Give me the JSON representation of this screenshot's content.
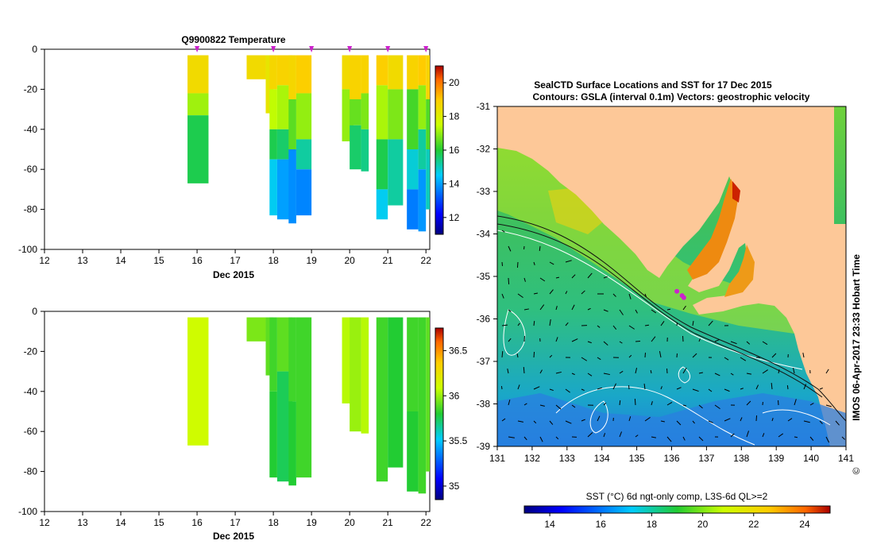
{
  "top_panel": {
    "title": "Q9900822  Temperature",
    "xlabel": "Dec 2015",
    "colorbar_ticks": [
      "12",
      "14",
      "16",
      "18",
      "20"
    ]
  },
  "bottom_panel": {
    "title": "",
    "xlabel": "Dec 2015",
    "colorbar_ticks": [
      "35",
      "35.5",
      "36",
      "36.5"
    ]
  },
  "map_panel": {
    "title_line1": "SealCTD Surface Locations and SST for 17 Dec 2015",
    "title_line2": "Contours: GSLA (interval 0.1m) Vectors: geostrophic velocity",
    "side_label": "IMOS 06-Apr-2017 23:33 Hobart Time",
    "copyright_symbol": "©",
    "colorbar_label": "SST (°C) 6d ngt-only comp, L3S-6d QL>=2",
    "colorbar_ticks": [
      "14",
      "16",
      "18",
      "20",
      "22",
      "24"
    ]
  },
  "colors": {
    "land": "#fdc898",
    "profile_marker": "#cc22cc",
    "contour": "#ffffff",
    "vector": "#000000"
  },
  "chart_data": [
    {
      "type": "heatmap",
      "name": "temperature-section",
      "title": "Q9900822  Temperature",
      "xlabel": "Dec 2015",
      "ylabel": "",
      "x_ticks": [
        12,
        13,
        14,
        15,
        16,
        17,
        18,
        19,
        20,
        21,
        22
      ],
      "y_ticks": [
        0,
        -20,
        -40,
        -60,
        -80,
        -100
      ],
      "xlim": [
        12,
        22.1
      ],
      "ylim": [
        -100,
        0
      ],
      "colorbar": {
        "min": 11,
        "max": 21,
        "ticks": [
          12,
          14,
          16,
          18,
          20
        ]
      },
      "markers_x": [
        16.0,
        18.0,
        19.0,
        20.0,
        21.0,
        22.0
      ],
      "profiles": [
        {
          "x0": 15.75,
          "x1": 16.3,
          "depth": 67,
          "layers": [
            [
              3,
              22,
              18.6
            ],
            [
              22,
              33,
              17.1
            ],
            [
              33,
              67,
              15.8
            ]
          ]
        },
        {
          "x0": 17.3,
          "x1": 17.8,
          "depth": 15,
          "layers": [
            [
              3,
              15,
              18.6
            ]
          ]
        },
        {
          "x0": 17.8,
          "x1": 18.0,
          "depth": 32,
          "layers": [
            [
              3,
              32,
              18.3
            ]
          ]
        },
        {
          "x0": 17.9,
          "x1": 18.1,
          "depth": 83,
          "layers": [
            [
              3,
              20,
              18.7
            ],
            [
              20,
              40,
              17.4
            ],
            [
              40,
              55,
              15.8
            ],
            [
              55,
              83,
              14.6
            ]
          ]
        },
        {
          "x0": 18.1,
          "x1": 18.5,
          "depth": 85,
          "layers": [
            [
              3,
              18,
              18.8
            ],
            [
              18,
              40,
              17.2
            ],
            [
              40,
              55,
              15.6
            ],
            [
              55,
              85,
              14.0
            ]
          ]
        },
        {
          "x0": 18.4,
          "x1": 18.6,
          "depth": 87,
          "layers": [
            [
              3,
              25,
              18.7
            ],
            [
              25,
              50,
              16.5
            ],
            [
              50,
              87,
              13.8
            ]
          ]
        },
        {
          "x0": 18.6,
          "x1": 19.0,
          "depth": 83,
          "layers": [
            [
              3,
              22,
              18.9
            ],
            [
              22,
              45,
              17.0
            ],
            [
              45,
              60,
              15.2
            ],
            [
              60,
              83,
              13.7
            ]
          ]
        },
        {
          "x0": 19.8,
          "x1": 20.1,
          "depth": 46,
          "layers": [
            [
              3,
              20,
              18.6
            ],
            [
              20,
              46,
              17.0
            ]
          ]
        },
        {
          "x0": 20.0,
          "x1": 20.3,
          "depth": 60,
          "layers": [
            [
              3,
              25,
              18.8
            ],
            [
              25,
              38,
              16.6
            ],
            [
              38,
              60,
              15.6
            ]
          ]
        },
        {
          "x0": 20.3,
          "x1": 20.5,
          "depth": 61,
          "layers": [
            [
              3,
              22,
              18.8
            ],
            [
              22,
              40,
              16.8
            ],
            [
              40,
              61,
              15.4
            ]
          ]
        },
        {
          "x0": 20.7,
          "x1": 21.0,
          "depth": 85,
          "layers": [
            [
              3,
              18,
              18.9
            ],
            [
              18,
              45,
              17.2
            ],
            [
              45,
              70,
              15.8
            ],
            [
              70,
              85,
              14.6
            ]
          ]
        },
        {
          "x0": 21.0,
          "x1": 21.4,
          "depth": 78,
          "layers": [
            [
              3,
              20,
              18.6
            ],
            [
              20,
              45,
              16.8
            ],
            [
              45,
              78,
              15.2
            ]
          ]
        },
        {
          "x0": 21.5,
          "x1": 21.8,
          "depth": 90,
          "layers": [
            [
              3,
              20,
              18.8
            ],
            [
              20,
              50,
              16.3
            ],
            [
              50,
              70,
              14.8
            ],
            [
              70,
              90,
              13.6
            ]
          ]
        },
        {
          "x0": 21.8,
          "x1": 22.0,
          "depth": 91,
          "layers": [
            [
              3,
              18,
              19.0
            ],
            [
              18,
              40,
              17.0
            ],
            [
              40,
              60,
              15.2
            ],
            [
              60,
              91,
              13.9
            ]
          ]
        },
        {
          "x0": 22.0,
          "x1": 22.1,
          "depth": 80,
          "layers": [
            [
              3,
              25,
              18.8
            ],
            [
              25,
              50,
              16.4
            ],
            [
              50,
              80,
              15.0
            ]
          ]
        }
      ]
    },
    {
      "type": "heatmap",
      "name": "salinity-section",
      "title": "",
      "xlabel": "Dec 2015",
      "ylabel": "",
      "x_ticks": [
        12,
        13,
        14,
        15,
        16,
        17,
        18,
        19,
        20,
        21,
        22
      ],
      "y_ticks": [
        0,
        -20,
        -40,
        -60,
        -80,
        -100
      ],
      "xlim": [
        12,
        22.1
      ],
      "ylim": [
        -100,
        0
      ],
      "colorbar": {
        "min": 34.85,
        "max": 36.75,
        "ticks": [
          35,
          35.5,
          36,
          36.5
        ]
      },
      "profiles": [
        {
          "x0": 15.75,
          "x1": 16.3,
          "depth": 67,
          "layers": [
            [
              3,
              67,
              36.1
            ]
          ]
        },
        {
          "x0": 17.3,
          "x1": 17.8,
          "depth": 15,
          "layers": [
            [
              3,
              15,
              35.95
            ]
          ]
        },
        {
          "x0": 17.8,
          "x1": 18.0,
          "depth": 32,
          "layers": [
            [
              3,
              32,
              35.9
            ]
          ]
        },
        {
          "x0": 17.9,
          "x1": 18.1,
          "depth": 83,
          "layers": [
            [
              3,
              40,
              35.85
            ],
            [
              40,
              83,
              35.8
            ]
          ]
        },
        {
          "x0": 18.1,
          "x1": 18.5,
          "depth": 85,
          "layers": [
            [
              3,
              30,
              35.9
            ],
            [
              30,
              85,
              35.75
            ]
          ]
        },
        {
          "x0": 18.4,
          "x1": 18.6,
          "depth": 87,
          "layers": [
            [
              3,
              45,
              35.85
            ],
            [
              45,
              87,
              35.8
            ]
          ]
        },
        {
          "x0": 18.6,
          "x1": 19.0,
          "depth": 83,
          "layers": [
            [
              3,
              83,
              35.85
            ]
          ]
        },
        {
          "x0": 19.8,
          "x1": 20.1,
          "depth": 46,
          "layers": [
            [
              3,
              46,
              36.05
            ]
          ]
        },
        {
          "x0": 20.0,
          "x1": 20.3,
          "depth": 60,
          "layers": [
            [
              3,
              60,
              36.0
            ]
          ]
        },
        {
          "x0": 20.3,
          "x1": 20.5,
          "depth": 61,
          "layers": [
            [
              3,
              61,
              36.05
            ]
          ]
        },
        {
          "x0": 20.7,
          "x1": 21.0,
          "depth": 85,
          "layers": [
            [
              3,
              85,
              35.85
            ]
          ]
        },
        {
          "x0": 21.0,
          "x1": 21.4,
          "depth": 78,
          "layers": [
            [
              3,
              78,
              35.8
            ]
          ]
        },
        {
          "x0": 21.5,
          "x1": 21.8,
          "depth": 90,
          "layers": [
            [
              3,
              50,
              35.85
            ],
            [
              50,
              90,
              35.8
            ]
          ]
        },
        {
          "x0": 21.8,
          "x1": 22.0,
          "depth": 91,
          "layers": [
            [
              3,
              91,
              35.85
            ]
          ]
        },
        {
          "x0": 22.0,
          "x1": 22.1,
          "depth": 80,
          "layers": [
            [
              3,
              80,
              35.9
            ]
          ]
        }
      ]
    },
    {
      "type": "heatmap",
      "name": "sst-map",
      "title": "SealCTD Surface Locations and SST for 17 Dec 2015",
      "subtitle": "Contours: GSLA (interval 0.1m) Vectors: geostrophic velocity",
      "xlabel": "",
      "ylabel": "",
      "x_ticks": [
        131,
        132,
        133,
        134,
        135,
        136,
        137,
        138,
        139,
        140,
        141
      ],
      "y_ticks": [
        -31,
        -32,
        -33,
        -34,
        -35,
        -36,
        -37,
        -38,
        -39
      ],
      "xlim": [
        131,
        141
      ],
      "ylim": [
        -39,
        -31
      ],
      "colorbar": {
        "min": 13,
        "max": 25,
        "ticks": [
          14,
          16,
          18,
          20,
          22,
          24
        ],
        "label": "SST (°C) 6d ngt-only comp, L3S-6d QL>=2"
      },
      "profile_locations": [
        [
          136.15,
          -35.35
        ],
        [
          136.3,
          -35.45
        ],
        [
          136.35,
          -35.5
        ]
      ]
    }
  ]
}
